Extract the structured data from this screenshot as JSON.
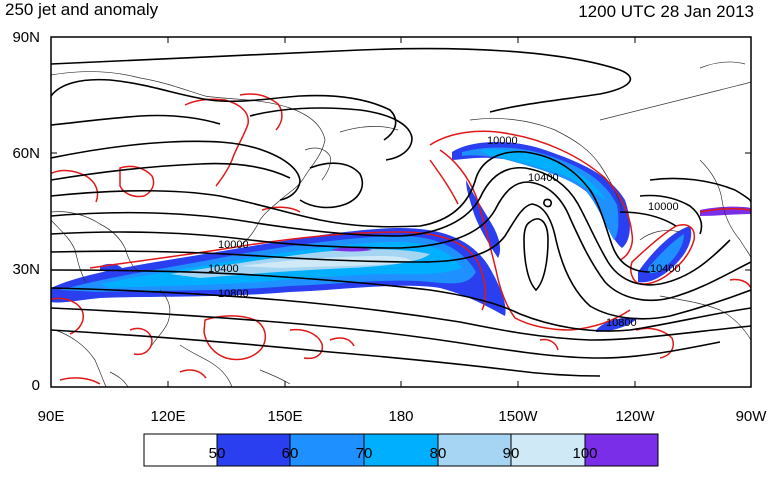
{
  "title_left": "250 jet and anomaly",
  "title_right": "1200 UTC 28 Jan 2013",
  "lat_labels": [
    "90N",
    "60N",
    "30N",
    "0"
  ],
  "lon_labels": [
    "90E",
    "120E",
    "150E",
    "180",
    "150W",
    "120W",
    "90W"
  ],
  "contour_labels": [
    "10000",
    "10400",
    "10800",
    "10000",
    "10400",
    "10000",
    "10400",
    "10800"
  ],
  "colorbar": {
    "labels": [
      "50",
      "60",
      "70",
      "80",
      "90",
      "100"
    ],
    "colors": [
      "#ffffff",
      "#2a3ff0",
      "#1e90ff",
      "#00b0ff",
      "#a5d5f2",
      "#cfe9f7",
      "#7a2ee8"
    ]
  },
  "colors": {
    "contour": "#000000",
    "anomaly": "#e01818",
    "coast": "#333333"
  }
}
